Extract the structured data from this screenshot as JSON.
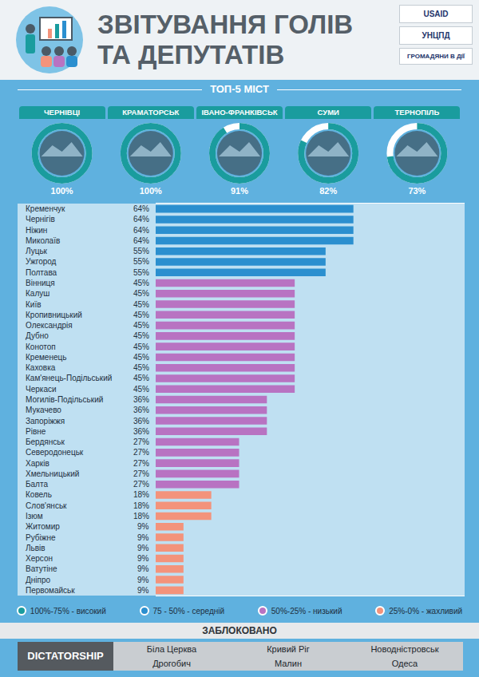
{
  "header": {
    "title": [
      "ЗВІТУВАННЯ ГОЛІВ",
      "ТА ДЕПУТАТІВ"
    ],
    "logos": [
      "USAID",
      "УНЦПД",
      "ГРОМАДЯНИ В ДІЇ"
    ]
  },
  "top5": {
    "title": "ТОП-5 МІСТ",
    "cities": [
      "ЧЕРНІВЦІ",
      "КРАМАТОРСЬК",
      "ІВАНО-ФРАНКІВСЬК",
      "СУМИ",
      "ТЕРНОПІЛЬ"
    ],
    "values": [
      100,
      100,
      91,
      82,
      73
    ],
    "value_labels": [
      "100%",
      "100%",
      "91%",
      "82%",
      "73%"
    ],
    "lim": [
      0,
      100
    ],
    "colors": [
      "#1a9c9e",
      "#1a9c9e",
      "#1a9c9e",
      "#1a9c9e",
      "#1a9c9e"
    ]
  },
  "chart_data": {
    "type": "bar",
    "orientation": "horizontal",
    "categories": [
      "Кременчук",
      "Чернігів",
      "Ніжин",
      "Миколаїв",
      "Луцьк",
      "Ужгород",
      "Полтава",
      "Вінниця",
      "Калуш",
      "Київ",
      "Кропивницький",
      "Олександрія",
      "Дубно",
      "Конотоп",
      "Кременець",
      "Каховка",
      "Кам'янець-Подільський",
      "Черкаси",
      "Могилів-Подільський",
      "Мукачево",
      "Запоріжжя",
      "Рівне",
      "Бердянськ",
      "Северодонецьк",
      "Харків",
      "Хмельницький",
      "Балта",
      "Ковель",
      "Слов'янськ",
      "Ізюм",
      "Житомир",
      "Рубіжне",
      "Львів",
      "Херсон",
      "Ватутіне",
      "Дніпро",
      "Первомайськ"
    ],
    "values": [
      64,
      64,
      64,
      64,
      55,
      55,
      55,
      45,
      45,
      45,
      45,
      45,
      45,
      45,
      45,
      45,
      45,
      45,
      36,
      36,
      36,
      36,
      27,
      27,
      27,
      27,
      27,
      18,
      18,
      18,
      9,
      9,
      9,
      9,
      9,
      9,
      9
    ],
    "value_labels": [
      "64%",
      "64%",
      "64%",
      "64%",
      "55%",
      "55%",
      "55%",
      "45%",
      "45%",
      "45%",
      "45%",
      "45%",
      "45%",
      "45%",
      "45%",
      "45%",
      "45%",
      "45%",
      "36%",
      "36%",
      "36%",
      "36%",
      "27%",
      "27%",
      "27%",
      "27%",
      "27%",
      "18%",
      "18%",
      "18%",
      "9%",
      "9%",
      "9%",
      "9%",
      "9%",
      "9%",
      "9%"
    ],
    "colors": [
      "#2b8fcf",
      "#2b8fcf",
      "#2b8fcf",
      "#2b8fcf",
      "#2b8fcf",
      "#2b8fcf",
      "#2b8fcf",
      "#b873c2",
      "#b873c2",
      "#b873c2",
      "#b873c2",
      "#b873c2",
      "#b873c2",
      "#b873c2",
      "#b873c2",
      "#b873c2",
      "#b873c2",
      "#b873c2",
      "#b873c2",
      "#b873c2",
      "#b873c2",
      "#b873c2",
      "#b873c2",
      "#b873c2",
      "#b873c2",
      "#b873c2",
      "#b873c2",
      "#f3937b",
      "#f3937b",
      "#f3937b",
      "#f3937b",
      "#f3937b",
      "#f3937b",
      "#f3937b",
      "#f3937b",
      "#f3937b",
      "#f3937b"
    ],
    "xlim": [
      0,
      100
    ],
    "data_labels": true,
    "tick_labels": "y",
    "grid": false
  },
  "rating_scale": [
    {
      "label": "100%-75% - високий",
      "color": "#1a9c9e"
    },
    {
      "label": "75 - 50% - середній",
      "color": "#2b8fcf"
    },
    {
      "label": "50%-25% - низький",
      "color": "#b873c2"
    },
    {
      "label": "25%-0% - жахливий",
      "color": "#f3937b"
    }
  ],
  "blocked": {
    "title": "ЗАБЛОКОВАНО",
    "label": "DICTATORSHIP",
    "cities": [
      [
        "Біла Церква",
        "Кривий Ріг",
        "Новодністровськ"
      ],
      [
        "Дрогобич",
        "Малин",
        "Одеса"
      ]
    ]
  }
}
